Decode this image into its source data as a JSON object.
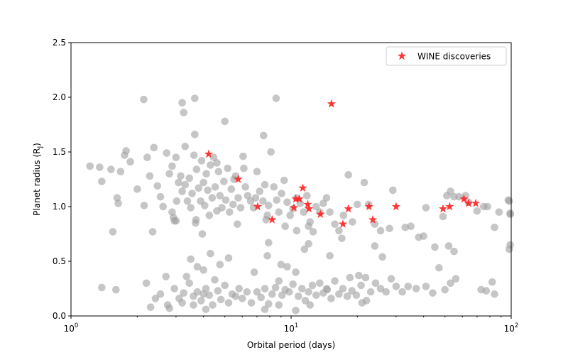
{
  "chart_data": {
    "type": "scatter",
    "title": "",
    "xlabel": "Orbital period (days)",
    "ylabel_main": "Planet radius (R",
    "ylabel_sub": "J",
    "ylabel_close": ")",
    "xscale": "log",
    "xlim": [
      1,
      100
    ],
    "ylim": [
      0,
      2.5
    ],
    "x_ticks": [
      {
        "value": 1,
        "base": "10",
        "exp": "0"
      },
      {
        "value": 10,
        "base": "10",
        "exp": "1"
      },
      {
        "value": 100,
        "base": "10",
        "exp": "2"
      }
    ],
    "y_ticks": [
      "0.0",
      "0.5",
      "1.0",
      "1.5",
      "2.0",
      "2.5"
    ],
    "grid": false,
    "legend": {
      "placement": "top-right",
      "label": "WINE discoveries"
    },
    "colors": {
      "background_points": "#a0a0a0",
      "wine_points": "#ff2020"
    },
    "series": [
      {
        "name": "",
        "marker": "circle",
        "points": [
          [
            1.22,
            1.37
          ],
          [
            1.35,
            1.36
          ],
          [
            1.38,
            1.23
          ],
          [
            1.52,
            1.34
          ],
          [
            1.62,
            1.08
          ],
          [
            1.64,
            1.03
          ],
          [
            1.68,
            1.32
          ],
          [
            1.75,
            1.47
          ],
          [
            1.78,
            1.51
          ],
          [
            1.86,
            1.41
          ],
          [
            2.0,
            1.16
          ],
          [
            2.15,
            1.01
          ],
          [
            2.22,
            1.45
          ],
          [
            2.28,
            1.28
          ],
          [
            2.38,
            1.54
          ],
          [
            2.47,
            1.19
          ],
          [
            2.55,
            1.09
          ],
          [
            2.62,
            1.0
          ],
          [
            2.72,
            1.49
          ],
          [
            2.8,
            1.3
          ],
          [
            2.88,
            1.37
          ],
          [
            2.92,
            0.9
          ],
          [
            2.95,
            0.87
          ],
          [
            3.02,
            1.05
          ],
          [
            3.08,
            1.22
          ],
          [
            3.15,
            1.28
          ],
          [
            3.2,
            1.14
          ],
          [
            3.3,
            1.2
          ],
          [
            3.38,
            1.05
          ],
          [
            3.45,
            1.26
          ],
          [
            3.5,
            0.99
          ],
          [
            3.55,
            1.12
          ],
          [
            3.62,
            1.47
          ],
          [
            3.68,
            0.85
          ],
          [
            3.72,
            1.34
          ],
          [
            3.8,
            1.17
          ],
          [
            3.88,
            1.05
          ],
          [
            3.92,
            1.42
          ],
          [
            4.0,
            1.22
          ],
          [
            4.05,
            1.01
          ],
          [
            4.12,
            1.3
          ],
          [
            4.18,
            1.15
          ],
          [
            4.25,
            0.92
          ],
          [
            4.3,
            1.38
          ],
          [
            4.38,
            1.08
          ],
          [
            4.45,
            1.45
          ],
          [
            4.52,
            1.18
          ],
          [
            4.6,
            0.96
          ],
          [
            4.68,
            1.32
          ],
          [
            4.75,
            1.1
          ],
          [
            4.85,
            0.99
          ],
          [
            4.95,
            1.23
          ],
          [
            5.05,
            1.06
          ],
          [
            5.15,
            1.35
          ],
          [
            5.25,
            0.95
          ],
          [
            5.35,
            1.16
          ],
          [
            5.45,
            1.02
          ],
          [
            5.6,
            1.28
          ],
          [
            5.75,
            1.08
          ],
          [
            5.9,
            0.99
          ],
          [
            6.05,
            1.46
          ],
          [
            6.2,
            1.18
          ],
          [
            6.35,
            1.1
          ],
          [
            6.55,
            1.05
          ],
          [
            6.75,
            0.99
          ],
          [
            7.0,
            1.32
          ],
          [
            7.2,
            1.14
          ],
          [
            7.45,
            1.05
          ],
          [
            7.6,
            1.2
          ],
          [
            7.7,
            0.88
          ],
          [
            7.8,
            0.92
          ],
          [
            7.9,
            1.01
          ],
          [
            8.1,
            1.5
          ],
          [
            8.35,
            1.18
          ],
          [
            8.6,
            1.06
          ],
          [
            8.8,
            0.95
          ],
          [
            9.05,
            1.12
          ],
          [
            9.3,
            1.24
          ],
          [
            9.6,
            1.04
          ],
          [
            9.9,
            0.92
          ],
          [
            10.2,
            0.98
          ],
          [
            10.6,
            1.08
          ],
          [
            11.0,
            1.03
          ],
          [
            11.4,
            0.95
          ],
          [
            11.8,
            1.1
          ],
          [
            12.2,
            0.86
          ],
          [
            12.6,
            0.77
          ],
          [
            13.0,
            1.0
          ],
          [
            13.5,
            0.95
          ],
          [
            14.0,
            1.03
          ],
          [
            14.5,
            1.08
          ],
          [
            15.0,
            0.95
          ],
          [
            15.8,
            0.84
          ],
          [
            16.5,
            0.78
          ],
          [
            17.3,
            0.92
          ],
          [
            18.2,
            1.29
          ],
          [
            19.0,
            0.86
          ],
          [
            20.0,
            1.02
          ],
          [
            21.5,
            1.22
          ],
          [
            22.5,
            1.02
          ],
          [
            24.0,
            0.84
          ],
          [
            25.5,
            0.78
          ],
          [
            28.0,
            0.8
          ],
          [
            29.0,
            1.15
          ],
          [
            33.0,
            0.81
          ],
          [
            35.0,
            0.82
          ],
          [
            38.0,
            0.72
          ],
          [
            41.0,
            0.99
          ],
          [
            49.0,
            0.91
          ],
          [
            51.0,
            1.1
          ],
          [
            53.0,
            1.14
          ],
          [
            55.0,
            1.09
          ],
          [
            58.0,
            1.09
          ],
          [
            62.0,
            1.1
          ],
          [
            64.0,
            1.04
          ],
          [
            70.0,
            0.96
          ],
          [
            75.0,
            1.0
          ],
          [
            78.0,
            1.0
          ],
          [
            88.0,
            0.95
          ],
          [
            97.0,
            1.06
          ],
          [
            98.0,
            1.05
          ],
          [
            99.0,
            0.94
          ],
          [
            2.14,
            1.98
          ],
          [
            3.2,
            1.95
          ],
          [
            3.65,
            1.99
          ],
          [
            3.25,
            1.86
          ],
          [
            5.0,
            1.78
          ],
          [
            7.5,
            1.65
          ],
          [
            8.55,
            1.99
          ],
          [
            3.65,
            1.66
          ],
          [
            3.3,
            1.55
          ],
          [
            1.55,
            0.77
          ],
          [
            2.35,
            0.77
          ],
          [
            3.0,
            0.87
          ],
          [
            3.5,
            0.52
          ],
          [
            3.75,
            0.45
          ],
          [
            3.95,
            0.75
          ],
          [
            4.3,
            0.57
          ],
          [
            4.75,
            0.47
          ],
          [
            5.2,
            0.53
          ],
          [
            6.8,
            0.4
          ],
          [
            7.8,
            0.55
          ],
          [
            9.0,
            0.47
          ],
          [
            9.6,
            0.45
          ],
          [
            10.5,
            0.4
          ],
          [
            11.5,
            0.61
          ],
          [
            12.0,
            0.66
          ],
          [
            15.0,
            0.55
          ],
          [
            17.0,
            0.71
          ],
          [
            18.5,
            0.35
          ],
          [
            20.3,
            0.37
          ],
          [
            24.0,
            0.64
          ],
          [
            26.0,
            0.54
          ],
          [
            40.0,
            0.73
          ],
          [
            45.0,
            0.63
          ],
          [
            52.0,
            0.64
          ],
          [
            55.0,
            0.59
          ],
          [
            84.0,
            0.81
          ],
          [
            98.0,
            0.61
          ],
          [
            99.0,
            0.65
          ],
          [
            1.38,
            0.26
          ],
          [
            1.6,
            0.24
          ],
          [
            2.2,
            0.3
          ],
          [
            2.3,
            0.08
          ],
          [
            2.42,
            0.16
          ],
          [
            2.55,
            0.2
          ],
          [
            2.7,
            0.36
          ],
          [
            2.75,
            0.1
          ],
          [
            2.95,
            0.25
          ],
          [
            3.1,
            0.16
          ],
          [
            3.2,
            0.12
          ],
          [
            3.25,
            0.21
          ],
          [
            3.35,
            0.36
          ],
          [
            3.45,
            0.3
          ],
          [
            3.6,
            0.18
          ],
          [
            3.75,
            0.22
          ],
          [
            3.9,
            0.14
          ],
          [
            4.0,
            0.42
          ],
          [
            4.1,
            0.25
          ],
          [
            4.25,
            0.19
          ],
          [
            4.4,
            0.1
          ],
          [
            4.5,
            0.33
          ],
          [
            4.65,
            0.23
          ],
          [
            4.8,
            0.15
          ],
          [
            5.0,
            0.28
          ],
          [
            5.2,
            0.12
          ],
          [
            5.4,
            0.2
          ],
          [
            5.6,
            0.18
          ],
          [
            5.8,
            0.25
          ],
          [
            6.0,
            0.16
          ],
          [
            6.3,
            0.22
          ],
          [
            6.6,
            0.12
          ],
          [
            7.0,
            0.22
          ],
          [
            7.3,
            0.17
          ],
          [
            7.6,
            0.25
          ],
          [
            7.9,
            0.11
          ],
          [
            8.2,
            0.2
          ],
          [
            8.5,
            0.26
          ],
          [
            8.8,
            0.32
          ],
          [
            9.1,
            0.19
          ],
          [
            9.4,
            0.24
          ],
          [
            9.8,
            0.22
          ],
          [
            10.2,
            0.29
          ],
          [
            10.5,
            0.05
          ],
          [
            10.8,
            0.18
          ],
          [
            11.2,
            0.25
          ],
          [
            11.6,
            0.14
          ],
          [
            12.0,
            0.22
          ],
          [
            12.5,
            0.28
          ],
          [
            13.0,
            0.19
          ],
          [
            13.5,
            0.3
          ],
          [
            14.0,
            0.21
          ],
          [
            14.6,
            0.24
          ],
          [
            15.2,
            0.16
          ],
          [
            15.8,
            0.32
          ],
          [
            16.5,
            0.2
          ],
          [
            17.2,
            0.25
          ],
          [
            18.0,
            0.18
          ],
          [
            18.9,
            0.23
          ],
          [
            19.8,
            0.19
          ],
          [
            20.8,
            0.28
          ],
          [
            21.8,
            0.35
          ],
          [
            23.0,
            0.22
          ],
          [
            24.2,
            0.3
          ],
          [
            25.5,
            0.25
          ],
          [
            27.0,
            0.22
          ],
          [
            28.5,
            0.34
          ],
          [
            30.0,
            0.27
          ],
          [
            32.0,
            0.22
          ],
          [
            34.0,
            0.27
          ],
          [
            37.0,
            0.25
          ],
          [
            41.0,
            0.27
          ],
          [
            44.0,
            0.21
          ],
          [
            47.0,
            0.44
          ],
          [
            50.0,
            0.24
          ],
          [
            53.0,
            0.3
          ],
          [
            56.0,
            0.34
          ],
          [
            73.0,
            0.24
          ],
          [
            77.0,
            0.23
          ],
          [
            82.0,
            0.31
          ],
          [
            84.0,
            0.2
          ],
          [
            99.0,
            0.93
          ],
          [
            2.88,
            0.95
          ],
          [
            3.7,
            0.88
          ],
          [
            5.7,
            0.84
          ],
          [
            9.4,
            0.82
          ],
          [
            10.6,
            0.78
          ],
          [
            12.0,
            0.82
          ],
          [
            7.9,
            0.67
          ],
          [
            4.0,
            0.2
          ],
          [
            3.6,
            0.1
          ],
          [
            4.1,
            0.06
          ],
          [
            2.8,
            0.07
          ],
          [
            7.6,
            0.06
          ],
          [
            8.8,
            0.1
          ],
          [
            12.2,
            0.1
          ],
          [
            14.5,
            0.25
          ],
          [
            21.0,
            0.12
          ],
          [
            22.0,
            0.14
          ],
          [
            3.0,
            1.45
          ],
          [
            4.6,
            1.4
          ],
          [
            5.5,
            1.25
          ],
          [
            6.1,
            1.35
          ],
          [
            6.9,
            1.08
          ]
        ]
      },
      {
        "name": "WINE discoveries",
        "marker": "star",
        "points": [
          [
            4.22,
            1.48
          ],
          [
            5.75,
            1.25
          ],
          [
            7.05,
            1.0
          ],
          [
            8.2,
            0.88
          ],
          [
            10.3,
            0.99
          ],
          [
            10.5,
            1.07
          ],
          [
            10.9,
            1.07
          ],
          [
            11.3,
            1.17
          ],
          [
            11.9,
            1.02
          ],
          [
            12.05,
            0.98
          ],
          [
            13.6,
            0.93
          ],
          [
            15.25,
            1.94
          ],
          [
            17.2,
            0.84
          ],
          [
            18.2,
            0.98
          ],
          [
            22.6,
            1.0
          ],
          [
            23.5,
            0.88
          ],
          [
            30.0,
            1.0
          ],
          [
            49.0,
            0.98
          ],
          [
            52.5,
            1.0
          ],
          [
            61.0,
            1.07
          ],
          [
            64.0,
            1.03
          ],
          [
            69.0,
            1.03
          ]
        ]
      }
    ]
  }
}
